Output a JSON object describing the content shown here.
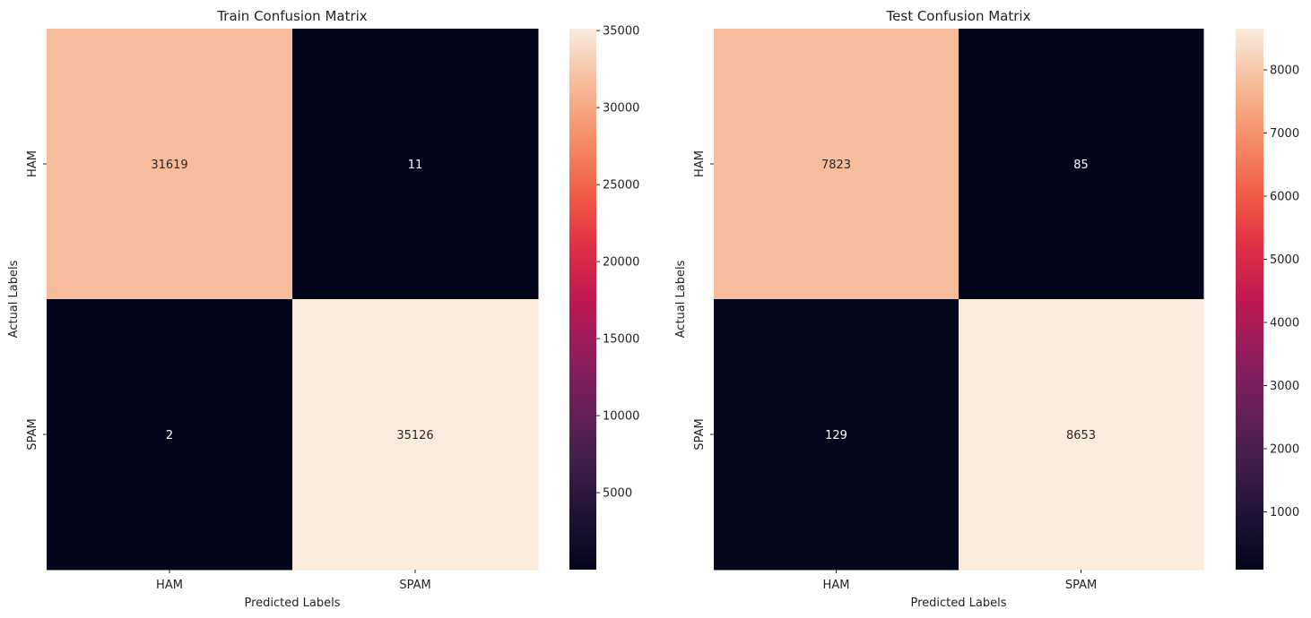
{
  "chart_data": [
    {
      "type": "heatmap",
      "title": "Train Confusion Matrix",
      "xlabel": "Predicted Labels",
      "ylabel": "Actual Labels",
      "x_categories": [
        "HAM",
        "SPAM"
      ],
      "y_categories": [
        "HAM",
        "SPAM"
      ],
      "values": [
        [
          31619,
          11
        ],
        [
          2,
          35126
        ]
      ],
      "colorbar": {
        "range": [
          2,
          35126
        ],
        "ticks": [
          5000,
          10000,
          15000,
          20000,
          25000,
          30000,
          35000
        ]
      },
      "colormap": "rocket"
    },
    {
      "type": "heatmap",
      "title": "Test Confusion Matrix",
      "xlabel": "Predicted Labels",
      "ylabel": "Actual Labels",
      "x_categories": [
        "HAM",
        "SPAM"
      ],
      "y_categories": [
        "HAM",
        "SPAM"
      ],
      "values": [
        [
          7823,
          85
        ],
        [
          129,
          8653
        ]
      ],
      "colorbar": {
        "range": [
          85,
          8653
        ],
        "ticks": [
          1000,
          2000,
          3000,
          4000,
          5000,
          6000,
          7000,
          8000
        ]
      },
      "colormap": "rocket"
    }
  ]
}
